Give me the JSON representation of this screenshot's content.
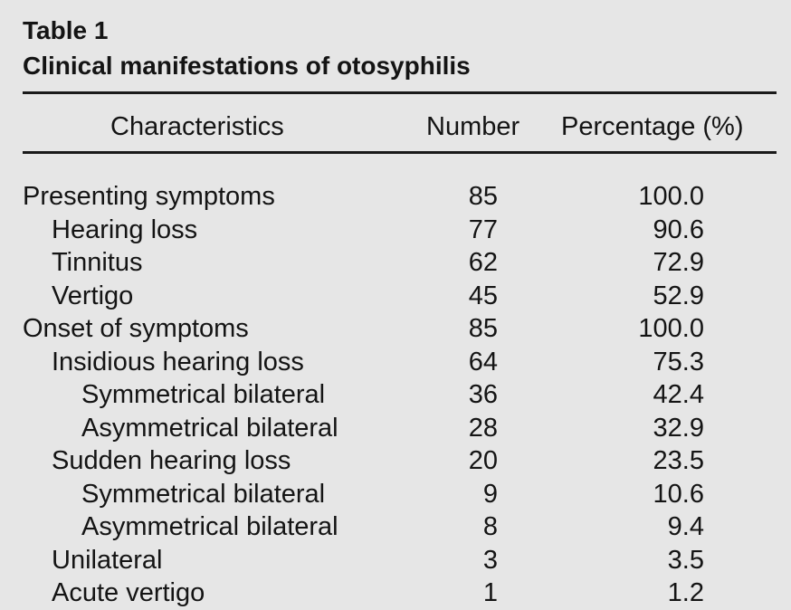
{
  "table": {
    "label": "Table 1",
    "title": "Clinical manifestations of otosyphilis",
    "columns": {
      "characteristics": "Characteristics",
      "number": "Number",
      "percentage": "Percentage (%)"
    },
    "rows": [
      {
        "label": "Presenting symptoms",
        "level": 0,
        "number": "85",
        "percentage": "100.0"
      },
      {
        "label": "Hearing loss",
        "level": 1,
        "number": "77",
        "percentage": "90.6"
      },
      {
        "label": "Tinnitus",
        "level": 1,
        "number": "62",
        "percentage": "72.9"
      },
      {
        "label": "Vertigo",
        "level": 1,
        "number": "45",
        "percentage": "52.9"
      },
      {
        "label": "Onset of symptoms",
        "level": 0,
        "number": "85",
        "percentage": "100.0"
      },
      {
        "label": "Insidious hearing loss",
        "level": 1,
        "number": "64",
        "percentage": "75.3"
      },
      {
        "label": "Symmetrical bilateral",
        "level": 2,
        "number": "36",
        "percentage": "42.4"
      },
      {
        "label": "Asymmetrical bilateral",
        "level": 2,
        "number": "28",
        "percentage": "32.9"
      },
      {
        "label": "Sudden hearing loss",
        "level": 1,
        "number": "20",
        "percentage": "23.5"
      },
      {
        "label": "Symmetrical bilateral",
        "level": 2,
        "number": "9",
        "percentage": "10.6"
      },
      {
        "label": "Asymmetrical bilateral",
        "level": 2,
        "number": "8",
        "percentage": "9.4"
      },
      {
        "label": "Unilateral",
        "level": 1,
        "number": "3",
        "percentage": "3.5"
      },
      {
        "label": "Acute vertigo",
        "level": 1,
        "number": "1",
        "percentage": "1.2"
      }
    ]
  }
}
